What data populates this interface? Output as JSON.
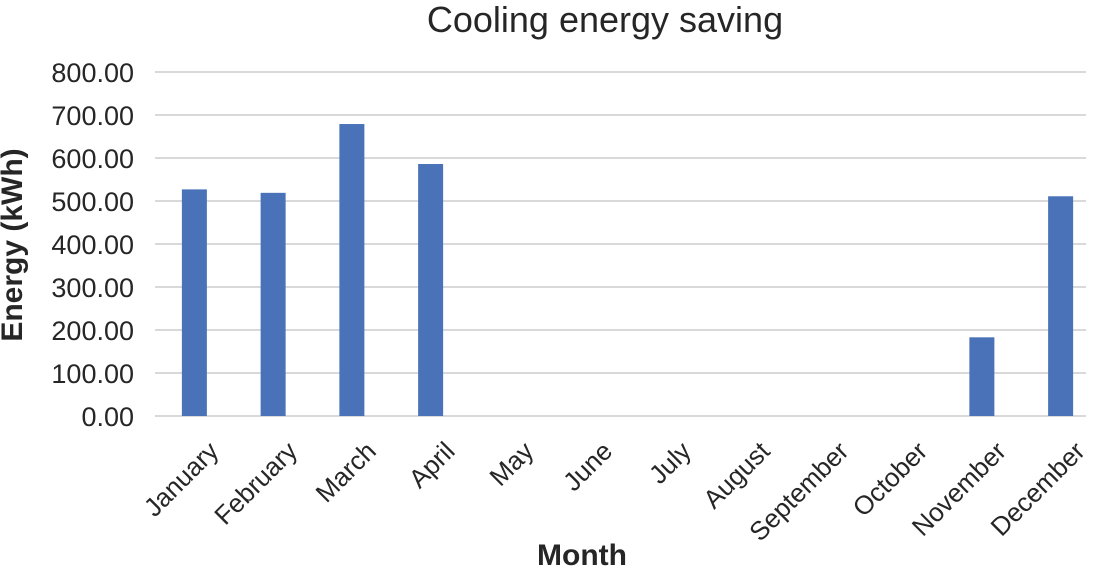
{
  "chart_data": {
    "type": "bar",
    "title": "Cooling energy saving",
    "xlabel": "Month",
    "ylabel": "Energy (kWh)",
    "ylim": [
      0,
      800
    ],
    "y_tick_step": 100,
    "y_tick_labels": [
      "0.00",
      "100.00",
      "200.00",
      "300.00",
      "400.00",
      "500.00",
      "600.00",
      "700.00",
      "800.00"
    ],
    "grid": true,
    "legend": "none",
    "categories": [
      "January",
      "February",
      "March",
      "April",
      "May",
      "June",
      "July",
      "August",
      "September",
      "October",
      "November",
      "December"
    ],
    "series": [
      {
        "name": "Cooling energy saving",
        "values": [
          527,
          519,
          679,
          586,
          0,
          0,
          0,
          0,
          0,
          0,
          183,
          511
        ]
      }
    ],
    "colors": {
      "bar": "#4a72b8",
      "grid": "#d9d9d9",
      "text": "#262626"
    }
  }
}
